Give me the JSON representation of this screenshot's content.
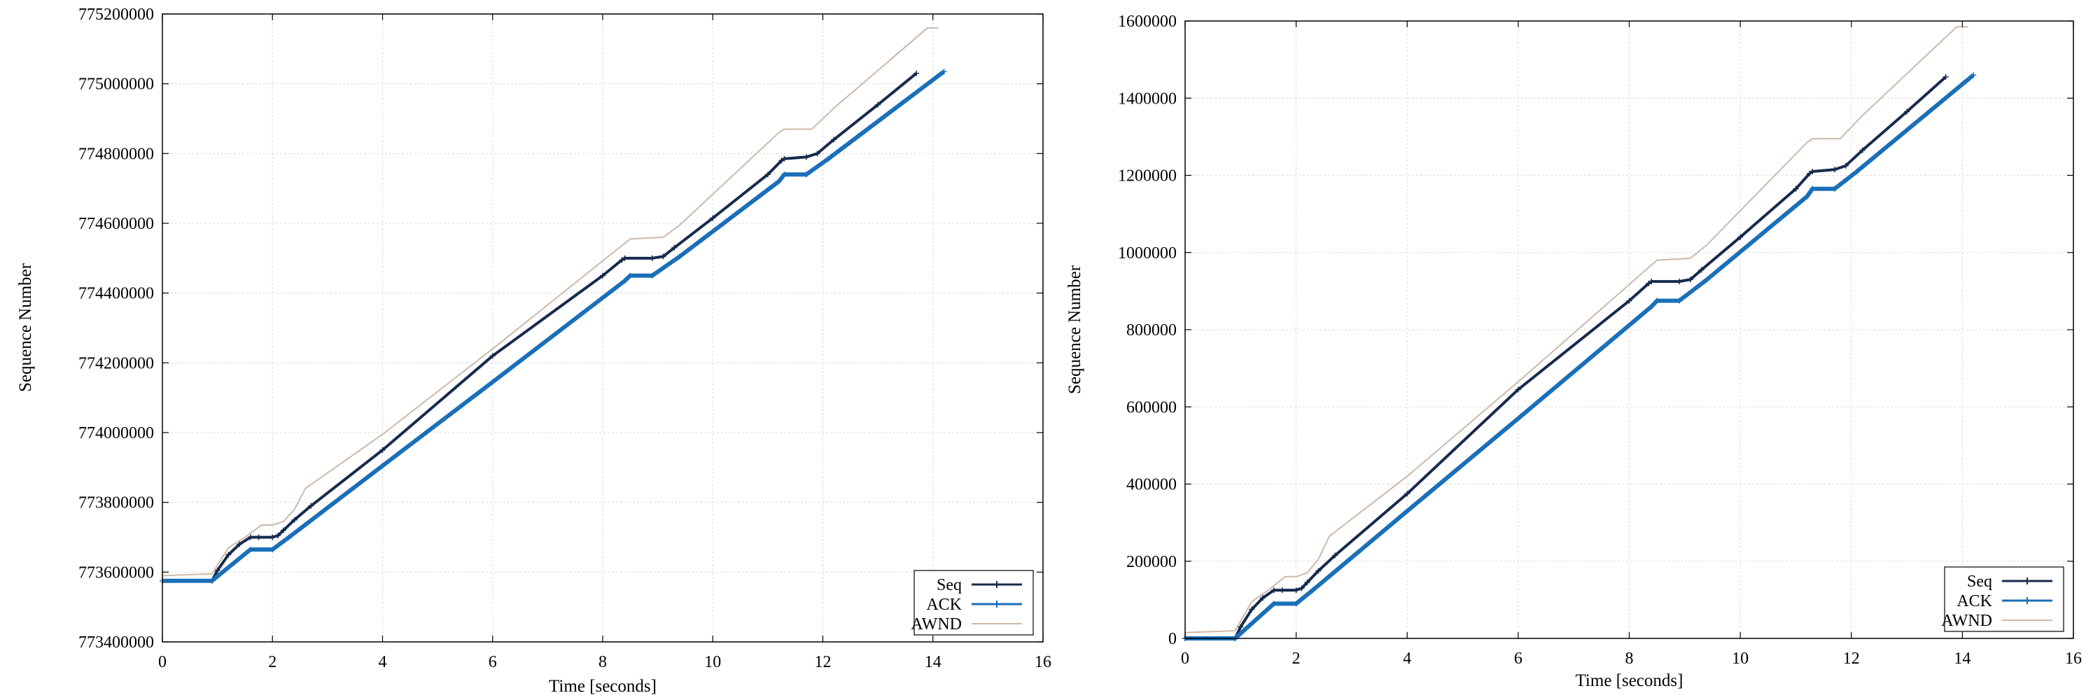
{
  "chart_data": [
    {
      "type": "line",
      "title": "",
      "xlabel": "Time [seconds]",
      "ylabel": "Sequence Number",
      "xlim": [
        0,
        16
      ],
      "ylim": [
        773400000,
        775200000
      ],
      "xticks": [
        0,
        2,
        4,
        6,
        8,
        10,
        12,
        14,
        16
      ],
      "yticks": [
        773400000,
        773600000,
        773800000,
        774000000,
        774200000,
        774400000,
        774600000,
        774800000,
        775000000,
        775200000
      ],
      "grid": true,
      "legend_position": "bottom-right",
      "series": [
        {
          "name": "Seq",
          "color": "#172a4e",
          "x": [
            0.0,
            0.9,
            1.0,
            1.2,
            1.4,
            1.6,
            1.75,
            2.0,
            2.1,
            2.2,
            2.4,
            2.7,
            4.0,
            6.0,
            8.0,
            8.35,
            8.4,
            8.9,
            9.1,
            9.3,
            10.0,
            11.0,
            11.25,
            11.3,
            11.7,
            11.9,
            12.2,
            13.0,
            13.7
          ],
          "y": [
            773575000,
            773575000,
            773605000,
            773650000,
            773680000,
            773700000,
            773700000,
            773700000,
            773705000,
            773720000,
            773750000,
            773790000,
            773950000,
            774220000,
            774450000,
            774495000,
            774500000,
            774500000,
            774505000,
            774530000,
            774615000,
            774740000,
            774780000,
            774785000,
            774790000,
            774800000,
            774840000,
            774940000,
            775030000
          ]
        },
        {
          "name": "ACK",
          "color": "#1a6fb8",
          "x": [
            0.0,
            0.9,
            1.6,
            2.0,
            2.3,
            4.0,
            6.0,
            8.4,
            8.5,
            8.9,
            9.4,
            11.2,
            11.3,
            11.7,
            12.1,
            14.2
          ],
          "y": [
            773575000,
            773575000,
            773665000,
            773665000,
            773700000,
            773905000,
            774145000,
            774435000,
            774450000,
            774450000,
            774505000,
            774720000,
            774740000,
            774740000,
            774785000,
            775035000
          ]
        },
        {
          "name": "AWND",
          "color": "#cdb9a9",
          "x": [
            0.0,
            0.9,
            1.0,
            1.2,
            1.5,
            1.8,
            2.0,
            2.2,
            2.4,
            2.6,
            4.0,
            6.0,
            8.3,
            8.5,
            9.1,
            9.4,
            11.2,
            11.3,
            11.8,
            12.2,
            13.9,
            14.1
          ],
          "y": [
            773590000,
            773595000,
            773620000,
            773670000,
            773700000,
            773735000,
            773735000,
            773745000,
            773780000,
            773840000,
            773995000,
            774240000,
            774530000,
            774555000,
            774560000,
            774595000,
            774860000,
            774870000,
            774870000,
            774930000,
            775160000,
            775160000
          ]
        }
      ]
    },
    {
      "type": "line",
      "title": "",
      "xlabel": "Time [seconds]",
      "ylabel": "Sequence Number",
      "xlim": [
        0,
        16
      ],
      "ylim": [
        0,
        1600000
      ],
      "xticks": [
        0,
        2,
        4,
        6,
        8,
        10,
        12,
        14,
        16
      ],
      "yticks": [
        0,
        200000,
        400000,
        600000,
        800000,
        1000000,
        1200000,
        1400000,
        1600000
      ],
      "grid": true,
      "legend_position": "bottom-right",
      "series": [
        {
          "name": "Seq",
          "color": "#172a4e",
          "x": [
            0.0,
            0.9,
            1.0,
            1.2,
            1.4,
            1.6,
            1.75,
            2.0,
            2.1,
            2.2,
            2.4,
            2.7,
            4.0,
            6.0,
            8.0,
            8.35,
            8.4,
            8.9,
            9.1,
            9.3,
            10.0,
            11.0,
            11.25,
            11.3,
            11.7,
            11.9,
            12.2,
            13.0,
            13.7
          ],
          "y": [
            0,
            0,
            30000,
            75000,
            105000,
            125000,
            125000,
            125000,
            130000,
            145000,
            175000,
            215000,
            375000,
            645000,
            875000,
            920000,
            925000,
            925000,
            930000,
            955000,
            1040000,
            1165000,
            1205000,
            1210000,
            1215000,
            1225000,
            1265000,
            1365000,
            1455000
          ]
        },
        {
          "name": "ACK",
          "color": "#1a6fb8",
          "x": [
            0.0,
            0.9,
            1.6,
            2.0,
            2.3,
            4.0,
            6.0,
            8.4,
            8.5,
            8.9,
            9.4,
            11.2,
            11.3,
            11.7,
            12.1,
            14.2
          ],
          "y": [
            0,
            0,
            90000,
            90000,
            125000,
            330000,
            570000,
            860000,
            875000,
            875000,
            930000,
            1145000,
            1165000,
            1165000,
            1210000,
            1460000
          ]
        },
        {
          "name": "AWND",
          "color": "#cdb9a9",
          "x": [
            0.0,
            0.9,
            1.0,
            1.2,
            1.5,
            1.8,
            2.0,
            2.2,
            2.4,
            2.6,
            4.0,
            6.0,
            8.3,
            8.5,
            9.1,
            9.4,
            11.2,
            11.3,
            11.8,
            12.2,
            13.9,
            14.1
          ],
          "y": [
            15000,
            20000,
            45000,
            95000,
            125000,
            160000,
            160000,
            170000,
            205000,
            265000,
            420000,
            665000,
            955000,
            980000,
            985000,
            1020000,
            1285000,
            1295000,
            1295000,
            1355000,
            1585000,
            1585000
          ]
        }
      ]
    }
  ]
}
